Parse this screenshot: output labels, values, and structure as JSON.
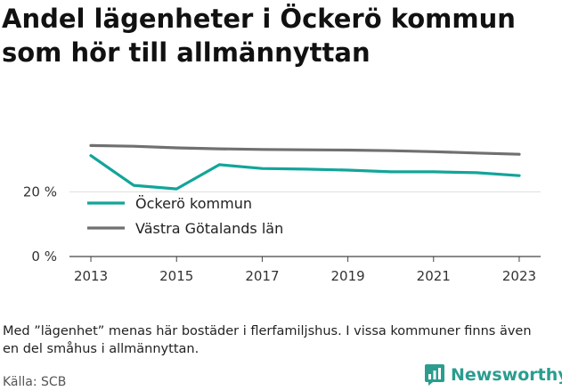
{
  "title": "Andel lägenheter i Öckerö kommun som hör till allmännyttan",
  "note": "Med ”lägenhet” menas här bostäder i flerfamiljshus. I vissa kommuner finns även en del småhus i allmännyttan.",
  "source": "Källa: SCB",
  "brand": {
    "name": "Newsworthy",
    "icon": "newsworthy-logo-icon",
    "color": "#2a9d8f"
  },
  "chart_data": {
    "type": "line",
    "x": [
      2013,
      2014,
      2015,
      2016,
      2017,
      2018,
      2019,
      2020,
      2021,
      2022,
      2023
    ],
    "xticks": [
      2013,
      2015,
      2017,
      2019,
      2021,
      2023
    ],
    "xtick_labels": [
      "2013",
      "2015",
      "2017",
      "2019",
      "2021",
      "2023"
    ],
    "yticks": [
      0,
      20
    ],
    "ytick_labels": [
      "0 %",
      "20 %"
    ],
    "ylim": [
      0,
      38
    ],
    "grid": true,
    "legend": "inside, left of plot",
    "series": [
      {
        "name": "Öckerö kommun",
        "color": "#12a59a",
        "values": [
          31.2,
          22.0,
          20.9,
          28.4,
          27.2,
          27.0,
          26.7,
          26.2,
          26.2,
          25.9,
          25.0
        ]
      },
      {
        "name": "Västra Götalands län",
        "color": "#707070",
        "values": [
          34.3,
          34.1,
          33.6,
          33.3,
          33.1,
          33.0,
          32.9,
          32.7,
          32.4,
          32.0,
          31.6
        ]
      }
    ]
  }
}
